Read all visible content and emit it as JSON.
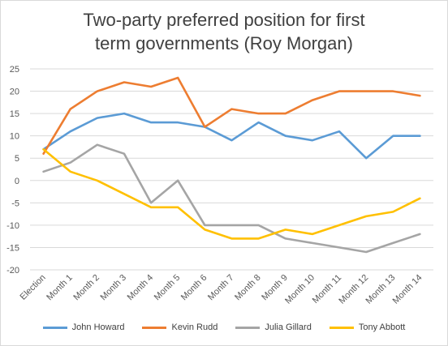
{
  "chart_data": {
    "type": "line",
    "title_lines": [
      "Two-party preferred position for first",
      "term governments (Roy Morgan)"
    ],
    "categories": [
      "Election",
      "Month 1",
      "Month 2",
      "Month 3",
      "Month 4",
      "Month 5",
      "Month 6",
      "Month 7",
      "Month 8",
      "Month 9",
      "Month 10",
      "Month 11",
      "Month 12",
      "Month 13",
      "Month 14"
    ],
    "ylim": [
      -20,
      25
    ],
    "yticks": [
      25,
      20,
      15,
      10,
      5,
      0,
      -5,
      -10,
      -15,
      -20
    ],
    "grid": true,
    "legend_position": "bottom",
    "series": [
      {
        "name": "John Howard",
        "color": "#5B9BD5",
        "values": [
          7,
          11,
          14,
          15,
          13,
          13,
          12,
          9,
          13,
          10,
          9,
          11,
          5,
          10,
          10
        ]
      },
      {
        "name": "Kevin Rudd",
        "color": "#ED7D31",
        "values": [
          6,
          16,
          20,
          22,
          21,
          23,
          12,
          16,
          15,
          15,
          18,
          20,
          20,
          20,
          19
        ]
      },
      {
        "name": "Julia Gillard",
        "color": "#A5A5A5",
        "values": [
          2,
          4,
          8,
          6,
          -5,
          0,
          -10,
          -10,
          -10,
          -13,
          -14,
          -15,
          -16,
          -14,
          -12
        ]
      },
      {
        "name": "Tony Abbott",
        "color": "#FFC000",
        "values": [
          7,
          2,
          0,
          -3,
          -6,
          -6,
          -11,
          -13,
          -13,
          -11,
          -12,
          -10,
          -8,
          -7,
          -4
        ]
      }
    ]
  }
}
